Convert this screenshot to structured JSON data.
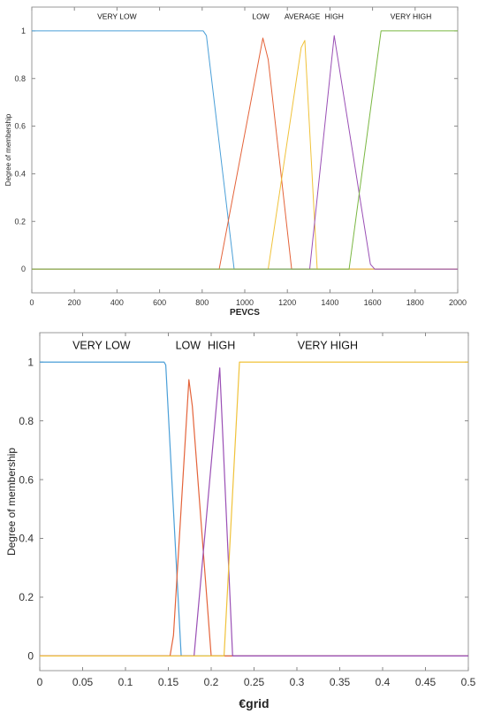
{
  "chart_data": [
    {
      "type": "line",
      "xlabel": "PEVCS",
      "ylabel": "Degree of membership",
      "xlim": [
        0,
        2000
      ],
      "ylim": [
        -0.1,
        1.1
      ],
      "xticks": [
        "0",
        "200",
        "400",
        "600",
        "800",
        "1000",
        "1200",
        "1400",
        "1600",
        "1800",
        "2000"
      ],
      "yticks": [
        "0",
        "0.2",
        "0.4",
        "0.6",
        "0.8",
        "1"
      ],
      "grid": false,
      "series": [
        {
          "name": "VERY LOW",
          "color": "#4a9fd8",
          "points": [
            [
              0,
              1
            ],
            [
              805,
              1
            ],
            [
              820,
              0.98
            ],
            [
              950,
              0
            ],
            [
              2000,
              0
            ]
          ]
        },
        {
          "name": "LOW",
          "color": "#e4633a",
          "points": [
            [
              0,
              0
            ],
            [
              880,
              0
            ],
            [
              1085,
              0.97
            ],
            [
              1110,
              0.88
            ],
            [
              1220,
              0
            ],
            [
              2000,
              0
            ]
          ]
        },
        {
          "name": "AVERAGE",
          "color": "#f0c23a",
          "points": [
            [
              0,
              0
            ],
            [
              1110,
              0
            ],
            [
              1265,
              0.93
            ],
            [
              1282,
              0.96
            ],
            [
              1340,
              0
            ],
            [
              2000,
              0
            ]
          ]
        },
        {
          "name": "HIGH",
          "color": "#9a4fb5",
          "points": [
            [
              0,
              0
            ],
            [
              1305,
              0
            ],
            [
              1420,
              0.98
            ],
            [
              1590,
              0.02
            ],
            [
              1610,
              0
            ],
            [
              2000,
              0
            ]
          ]
        },
        {
          "name": "VERY HIGH",
          "color": "#7ab742",
          "points": [
            [
              0,
              0
            ],
            [
              1490,
              0
            ],
            [
              1640,
              1
            ],
            [
              2000,
              1
            ]
          ]
        }
      ],
      "labels": [
        {
          "text": "VERY LOW",
          "x": 400,
          "y": 1.05
        },
        {
          "text": "LOW",
          "x": 1075,
          "y": 1.05
        },
        {
          "text": "AVERAGE",
          "x": 1270,
          "y": 1.05
        },
        {
          "text": "HIGH",
          "x": 1420,
          "y": 1.05
        },
        {
          "text": "VERY HIGH",
          "x": 1780,
          "y": 1.05
        }
      ]
    },
    {
      "type": "line",
      "xlabel": "€grid",
      "ylabel": "Degree of membership",
      "xlim": [
        0,
        0.5
      ],
      "ylim": [
        -0.05,
        1.1
      ],
      "xticks": [
        "0",
        "0.05",
        "0.1",
        "0.15",
        "0.2",
        "0.25",
        "0.3",
        "0.35",
        "0.4",
        "0.45",
        "0.5"
      ],
      "yticks": [
        "0",
        "0.2",
        "0.4",
        "0.6",
        "0.8",
        "1"
      ],
      "grid": false,
      "series": [
        {
          "name": "VERY LOW",
          "color": "#4a9fd8",
          "points": [
            [
              0,
              1
            ],
            [
              0.145,
              1
            ],
            [
              0.147,
              0.99
            ],
            [
              0.165,
              0
            ],
            [
              0.5,
              0
            ]
          ]
        },
        {
          "name": "LOW",
          "color": "#e4633a",
          "points": [
            [
              0,
              0
            ],
            [
              0.152,
              0
            ],
            [
              0.156,
              0.07
            ],
            [
              0.174,
              0.94
            ],
            [
              0.178,
              0.85
            ],
            [
              0.2,
              0
            ],
            [
              0.5,
              0
            ]
          ]
        },
        {
          "name": "HIGH",
          "color": "#9a4fb5",
          "points": [
            [
              0,
              0
            ],
            [
              0.18,
              0
            ],
            [
              0.21,
              0.98
            ],
            [
              0.225,
              0
            ],
            [
              0.5,
              0
            ]
          ]
        },
        {
          "name": "VERY HIGH",
          "color": "#f0c23a",
          "points": [
            [
              0,
              0
            ],
            [
              0.215,
              0
            ],
            [
              0.233,
              1
            ],
            [
              0.5,
              1
            ]
          ]
        }
      ],
      "labels": [
        {
          "text": "VERY LOW",
          "x": 0.072,
          "y": 1.045
        },
        {
          "text": "LOW",
          "x": 0.173,
          "y": 1.045
        },
        {
          "text": "HIGH",
          "x": 0.212,
          "y": 1.045
        },
        {
          "text": "VERY HIGH",
          "x": 0.336,
          "y": 1.045
        }
      ]
    }
  ]
}
